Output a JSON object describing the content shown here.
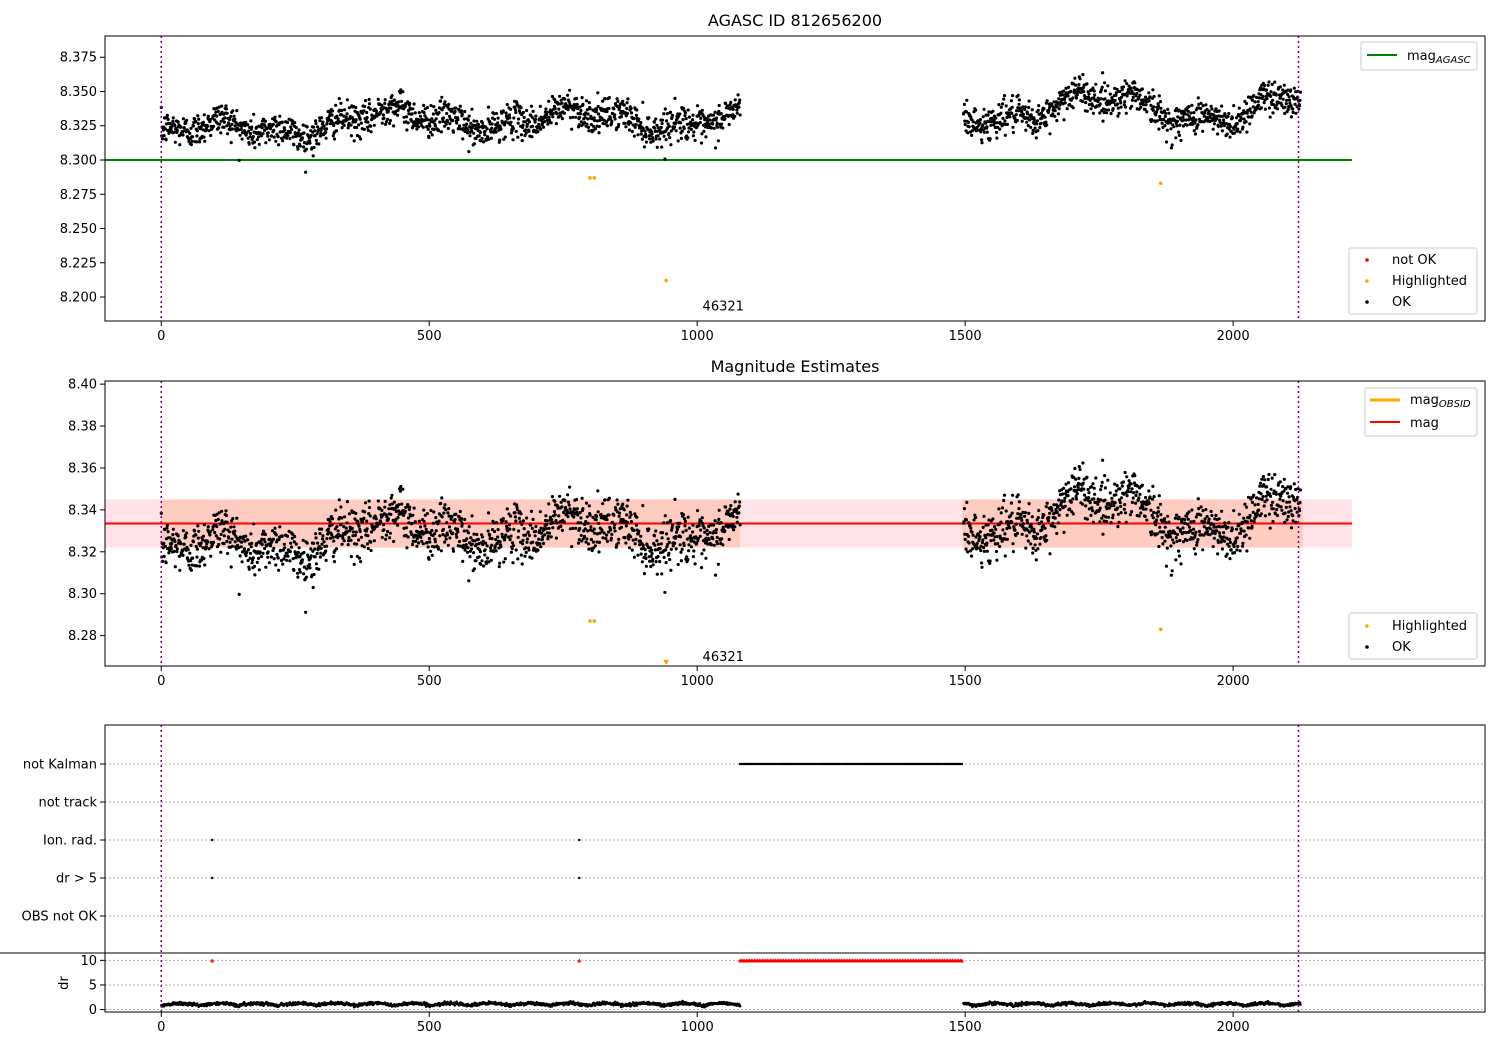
{
  "chart_data": [
    {
      "type": "scatter",
      "title": "AGASC ID 812656200",
      "xlim": [
        -105,
        2470
      ],
      "ylim": [
        8.1825,
        8.3905
      ],
      "x_ticks": [
        0,
        500,
        1000,
        1500,
        2000
      ],
      "x_tick_labels": [
        "0",
        "500",
        "1000",
        "1500",
        "2000"
      ],
      "y_ticks": [
        8.2,
        8.225,
        8.25,
        8.275,
        8.3,
        8.325,
        8.35,
        8.375
      ],
      "y_tick_labels": [
        "8.200",
        "8.225",
        "8.250",
        "8.275",
        "8.300",
        "8.325",
        "8.350",
        "8.375"
      ],
      "vlines": [
        0,
        2122
      ],
      "annotation": {
        "text": "46321",
        "x": 1010,
        "y": 8.19
      },
      "reference_line": {
        "name": "mag_AGASC",
        "y": 8.3,
        "x_range": [
          -105,
          2222
        ],
        "color": "#008000"
      },
      "legend_lines": {
        "placement": "upper right",
        "entries": [
          {
            "label": "mag",
            "sub": "AGASC",
            "color": "#008000"
          }
        ]
      },
      "legend_points": {
        "placement": "lower right",
        "entries": [
          {
            "label": "not OK",
            "color": "#ff0000"
          },
          {
            "label": "Highlighted",
            "color": "#ffa500"
          },
          {
            "label": "OK",
            "color": "#000000"
          }
        ]
      },
      "highlighted_points": [
        [
          800,
          8.287
        ],
        [
          808,
          8.287
        ],
        [
          942,
          8.212
        ],
        [
          1865,
          8.283
        ]
      ]
    },
    {
      "type": "scatter",
      "title": "Magnitude Estimates",
      "xlim": [
        -105,
        2470
      ],
      "ylim": [
        8.2655,
        8.4015
      ],
      "x_ticks": [
        0,
        500,
        1000,
        1500,
        2000
      ],
      "x_tick_labels": [
        "0",
        "500",
        "1000",
        "1500",
        "2000"
      ],
      "y_ticks": [
        8.28,
        8.3,
        8.32,
        8.34,
        8.36,
        8.38,
        8.4
      ],
      "y_tick_labels": [
        "8.28",
        "8.30",
        "8.32",
        "8.34",
        "8.36",
        "8.38",
        "8.40"
      ],
      "vlines": [
        0,
        2122
      ],
      "annotation": {
        "text": "46321",
        "x": 1010,
        "y": 8.268
      },
      "mean_line": {
        "name": "mag",
        "y": 8.3335,
        "x_range": [
          -105,
          2222
        ],
        "color": "#ff0000"
      },
      "band": {
        "y_low": 8.322,
        "y_high": 8.345,
        "x_range": [
          -105,
          2222
        ],
        "color": "#ffc0cb"
      },
      "obsid_segments": [
        {
          "x_range": [
            0,
            1080
          ],
          "y": 8.3335,
          "y_low": 8.322,
          "y_high": 8.345
        },
        {
          "x_range": [
            1495,
            2130
          ],
          "y": 8.3335,
          "y_low": 8.322,
          "y_high": 8.345
        }
      ],
      "legend_lines": {
        "placement": "upper right",
        "entries": [
          {
            "label": "mag",
            "sub": "OBSID",
            "color": "#ffa500"
          },
          {
            "label": "mag",
            "sub": "",
            "color": "#ff0000"
          }
        ]
      },
      "legend_points": {
        "placement": "lower right",
        "entries": [
          {
            "label": "Highlighted",
            "color": "#ffa500"
          },
          {
            "label": "OK",
            "color": "#000000"
          }
        ]
      },
      "highlighted_points": [
        [
          800,
          8.287
        ],
        [
          808,
          8.287
        ],
        [
          1865,
          8.283
        ]
      ],
      "triangle_points": [
        [
          942,
          8.267
        ]
      ]
    },
    {
      "type": "scatter",
      "flags_panel": {
        "categories": [
          "not Kalman",
          "not track",
          "Ion. rad.",
          "dr > 5",
          "OBS not OK"
        ],
        "not_kalman_range": [
          1080,
          1495
        ],
        "ion_rad_x": [
          95,
          780
        ],
        "dr5_x": [
          95,
          780
        ]
      },
      "dr_panel": {
        "ylabel": "dr",
        "y_ticks": [
          0,
          5,
          10
        ],
        "y_tick_labels": [
          "0",
          "5",
          "10"
        ],
        "ylim": [
          -0.5,
          11.5
        ],
        "red_triangles_x": [
          95,
          780
        ],
        "red_triangles_range": [
          1080,
          1495
        ],
        "red_triangles_y": 10
      },
      "x_ticks": [
        0,
        500,
        1000,
        1500,
        2000
      ],
      "x_tick_labels": [
        "0",
        "500",
        "1000",
        "1500",
        "2000"
      ],
      "xlim": [
        -105,
        2470
      ],
      "vlines": [
        0,
        2122
      ]
    }
  ]
}
